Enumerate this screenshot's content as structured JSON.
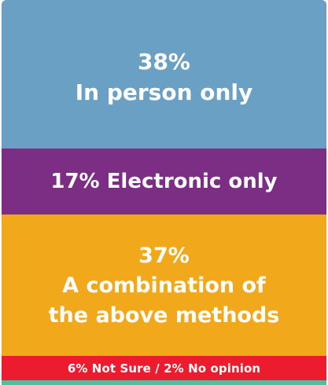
{
  "chart_data": {
    "type": "table",
    "segments": [
      {
        "key": "inperson",
        "value": 38,
        "value_label": "38%",
        "label": "In person only",
        "color": "#6aa0c3"
      },
      {
        "key": "electronic",
        "value": 17,
        "value_label": "17%",
        "label": "Electronic only",
        "color": "#7c2d84"
      },
      {
        "key": "combination",
        "value": 37,
        "value_label": "37%",
        "label_lines": [
          "A combination of",
          "the above methods"
        ],
        "color": "#f2a81b"
      },
      {
        "key": "notsure",
        "values": [
          6,
          2
        ],
        "label": "6% Not Sure / 2% No opinion",
        "color": "#ec1c2e"
      }
    ],
    "strip_color": "#4fbf9f"
  }
}
